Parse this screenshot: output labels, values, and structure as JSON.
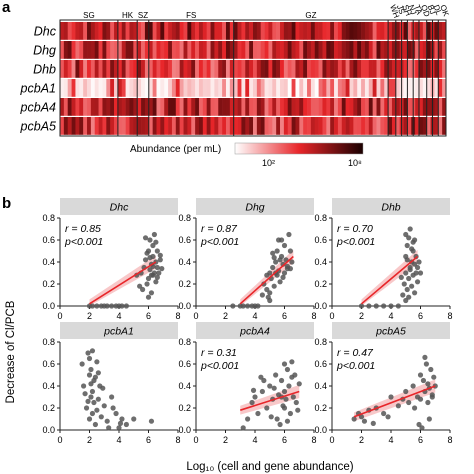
{
  "panel_a": {
    "letter": "a",
    "sites": [
      "SG",
      "HK",
      "SZ",
      "FS",
      "GZ",
      "WH",
      "JS",
      "SH",
      "NJ",
      "TA",
      "QD",
      "BJ",
      "DL",
      "OK"
    ],
    "genes": [
      "Dhc",
      "Dhg",
      "Dhb",
      "pcbA1",
      "pcbA4",
      "pcbA5"
    ],
    "legend_title": "Abundance (per mL)",
    "legend_min": "10²",
    "legend_max": "10⁸",
    "colors": {
      "low": "#ffffff",
      "mid": "#e8262a",
      "high": "#1a0000"
    }
  },
  "panel_b": {
    "letter": "b",
    "ylabel": "Decrease of Cl/PCB",
    "xlabel": "Log₁₀ (cell and gene abundance)"
  },
  "chart_data": [
    {
      "type": "scatter",
      "title": "Dhc",
      "r": "r = 0.85",
      "p": "p<0.001",
      "xlim": [
        0,
        8
      ],
      "ylim": [
        0,
        0.8
      ],
      "xticks": [
        "0",
        "2",
        "4",
        "6",
        "8"
      ],
      "yticks": [
        "0.0",
        "0.2",
        "0.4",
        "0.6",
        "0.8"
      ],
      "fit": {
        "x": [
          2,
          6.5
        ],
        "y": [
          0.02,
          0.4
        ]
      },
      "x": [
        2,
        2.2,
        2.5,
        2.8,
        3,
        3.2,
        3.5,
        3.8,
        4,
        4.2,
        4.5,
        5.2,
        5.5,
        5.6,
        5.7,
        5.8,
        5.9,
        6,
        6,
        6.1,
        6.1,
        6.2,
        6.2,
        6.3,
        6.3,
        6.3,
        6.4,
        6.4,
        6.5,
        6.5,
        6.6,
        6.6,
        6.7,
        6.8,
        5.4,
        5.8,
        6.0,
        6.2,
        6.5,
        5.9,
        6.1,
        6.3,
        6.6,
        6.8,
        6.9
      ],
      "y": [
        0,
        0,
        0,
        0,
        0,
        0,
        0,
        0,
        0,
        0,
        0,
        0.28,
        0.3,
        0.15,
        0.35,
        0.42,
        0.2,
        0.25,
        0.5,
        0.33,
        0.6,
        0.12,
        0.38,
        0.45,
        0.28,
        0.55,
        0.3,
        0.65,
        0.4,
        0.22,
        0.35,
        0.5,
        0.3,
        0.42,
        0.18,
        0.62,
        0.08,
        0.28,
        0.58,
        0.48,
        0.44,
        0.36,
        0.26,
        0.46,
        0.34
      ]
    },
    {
      "type": "scatter",
      "title": "Dhg",
      "r": "r = 0.87",
      "p": "p<0.001",
      "xlim": [
        0,
        8
      ],
      "ylim": [
        0,
        0.8
      ],
      "xticks": [
        "0",
        "2",
        "4",
        "6",
        "8"
      ],
      "yticks": [
        "0.0",
        "0.2",
        "0.4",
        "0.6",
        "0.8"
      ],
      "fit": {
        "x": [
          3,
          6.6
        ],
        "y": [
          0.02,
          0.45
        ]
      },
      "x": [
        2.5,
        3,
        3.2,
        3.5,
        3.8,
        4,
        4.2,
        4.5,
        4.6,
        4.8,
        5,
        5,
        5.1,
        5.2,
        5.3,
        5.4,
        5.5,
        5.5,
        5.6,
        5.7,
        5.8,
        5.8,
        5.9,
        6,
        6,
        6.1,
        6.2,
        6.3,
        6.4,
        6.5,
        4.8,
        5.0,
        5.3,
        5.6,
        5.9,
        6.2,
        5.2,
        4.9,
        5.4,
        5.7,
        6.4
      ],
      "y": [
        0,
        0,
        0,
        0,
        0,
        0,
        0,
        0.1,
        0.2,
        0.15,
        0.3,
        0.05,
        0.25,
        0.35,
        0.18,
        0.4,
        0.28,
        0.5,
        0.32,
        0.22,
        0.45,
        0.6,
        0.38,
        0.3,
        0.55,
        0.42,
        0.34,
        0.65,
        0.5,
        0.4,
        0.28,
        0.12,
        0.44,
        0.6,
        0.26,
        0.36,
        0.48,
        0.08,
        0.3,
        0.42,
        0.34
      ]
    },
    {
      "type": "scatter",
      "title": "Dhb",
      "r": "r = 0.70",
      "p": "p<0.001",
      "xlim": [
        0,
        8
      ],
      "ylim": [
        0,
        0.8
      ],
      "xticks": [
        "0",
        "2",
        "4",
        "6",
        "8"
      ],
      "yticks": [
        "0.0",
        "0.2",
        "0.4",
        "0.6",
        "0.8"
      ],
      "fit": {
        "x": [
          2,
          5.8
        ],
        "y": [
          0.02,
          0.45
        ]
      },
      "x": [
        2,
        2.5,
        3,
        3.5,
        4,
        4.5,
        5,
        4.8,
        4.9,
        5,
        5,
        5.1,
        5.1,
        5.2,
        5.2,
        5.3,
        5.3,
        5.4,
        5.4,
        5.5,
        5.5,
        5.6,
        5.6,
        5.7,
        5.7,
        5.8,
        5.8,
        5.0,
        5.2,
        5.4,
        5.6,
        5.1,
        5.3,
        5.5,
        4.7,
        5.9,
        6.0
      ],
      "y": [
        0,
        0,
        0,
        0,
        0,
        0,
        0.05,
        0.1,
        0.2,
        0.3,
        0.45,
        0.15,
        0.55,
        0.25,
        0.62,
        0.35,
        0.7,
        0.4,
        0.18,
        0.28,
        0.5,
        0.38,
        0.6,
        0.3,
        0.45,
        0.22,
        0.35,
        0.65,
        0.08,
        0.52,
        0.12,
        0.42,
        0.33,
        0.58,
        0.26,
        0.4,
        0.3
      ]
    },
    {
      "type": "scatter",
      "title": "pcbA1",
      "r": "",
      "p": "",
      "xlim": [
        0,
        8
      ],
      "ylim": [
        0,
        0.8
      ],
      "xticks": [
        "0",
        "2",
        "4",
        "6",
        "8"
      ],
      "yticks": [
        "0.0",
        "0.2",
        "0.4",
        "0.6",
        "0.8"
      ],
      "fit": null,
      "x": [
        1.5,
        1.6,
        1.8,
        1.9,
        2,
        2,
        2.1,
        2.1,
        2.2,
        2.2,
        2.3,
        2.3,
        2.4,
        2.5,
        2.5,
        2.6,
        2.7,
        2.8,
        3,
        3.2,
        3.5,
        3.8,
        4,
        4.2,
        4.5,
        5,
        6.2,
        1.7,
        2.0,
        2.4,
        2.9,
        3.3,
        2.2,
        1.9,
        2.6,
        3.6,
        4.1,
        2.1
      ],
      "y": [
        0.6,
        0.4,
        0.2,
        0.7,
        0.5,
        0.1,
        0.3,
        0.55,
        0.15,
        0.35,
        0.25,
        0.45,
        0.05,
        0.62,
        0.18,
        0.28,
        0.4,
        0.12,
        0.22,
        0.08,
        0.3,
        0.15,
        0.02,
        0.1,
        0.05,
        0.1,
        0.08,
        0.33,
        0.65,
        0.48,
        0.38,
        0.02,
        0.72,
        0.26,
        0.52,
        0.2,
        0.06,
        0.42
      ]
    },
    {
      "type": "scatter",
      "title": "pcbA4",
      "r": "r = 0.31",
      "p": "p<0.001",
      "xlim": [
        0,
        8
      ],
      "ylim": [
        0,
        0.8
      ],
      "xticks": [
        "0",
        "2",
        "4",
        "6",
        "8"
      ],
      "yticks": [
        "0.0",
        "0.2",
        "0.4",
        "0.6",
        "0.8"
      ],
      "fit": {
        "x": [
          3,
          7
        ],
        "y": [
          0.18,
          0.35
        ]
      },
      "x": [
        3.2,
        3.5,
        3.8,
        4,
        4.2,
        4.5,
        4.8,
        5,
        5.2,
        5.4,
        5.5,
        5.6,
        5.8,
        5.9,
        6,
        6,
        6.1,
        6.2,
        6.3,
        6.4,
        6.5,
        6.6,
        6.8,
        7,
        5.7,
        6.2,
        6.5,
        4.6,
        5.3,
        6.9,
        4.4,
        5.1,
        6.0,
        6.7,
        3.9,
        5.8
      ],
      "y": [
        0.02,
        0.1,
        0.25,
        0.3,
        0.15,
        0.35,
        0.2,
        0.4,
        0.28,
        0.5,
        0.1,
        0.32,
        0.45,
        0.22,
        0.6,
        0.35,
        0.28,
        0.55,
        0.4,
        0.15,
        0.48,
        0.3,
        0.25,
        0.42,
        0.05,
        0.08,
        0.62,
        0.45,
        0.38,
        0.18,
        0.48,
        0.12,
        0.2,
        0.5,
        0.36,
        0.3
      ]
    },
    {
      "type": "scatter",
      "title": "pcbA5",
      "r": "r = 0.47",
      "p": "p<0.001",
      "xlim": [
        0,
        8
      ],
      "ylim": [
        0,
        0.8
      ],
      "xticks": [
        "0",
        "2",
        "4",
        "6",
        "8"
      ],
      "yticks": [
        "0.0",
        "0.2",
        "0.4",
        "0.6",
        "0.8"
      ],
      "fit": {
        "x": [
          1.5,
          7
        ],
        "y": [
          0.12,
          0.4
        ]
      },
      "x": [
        1.5,
        1.8,
        2,
        2.2,
        2.5,
        3,
        3.5,
        4,
        4.5,
        5,
        5.2,
        5.5,
        5.8,
        6,
        6,
        6.2,
        6.3,
        6.4,
        6.5,
        6.5,
        6.6,
        6.7,
        6.8,
        6.9,
        7,
        6.1,
        5.9,
        6.6,
        4.8,
        5.6,
        6.3,
        6.8,
        2.8,
        3.8
      ],
      "y": [
        0.1,
        0.15,
        0.12,
        0.08,
        0.18,
        0.2,
        0.15,
        0.3,
        0.22,
        0.35,
        0.25,
        0.4,
        0.3,
        0.5,
        0.28,
        0.45,
        0.35,
        0.6,
        0.42,
        0.25,
        0.38,
        0.55,
        0.32,
        0.48,
        0.4,
        0.02,
        0.05,
        0.1,
        0.28,
        0.2,
        0.66,
        0.3,
        0.06,
        0.12
      ]
    }
  ]
}
